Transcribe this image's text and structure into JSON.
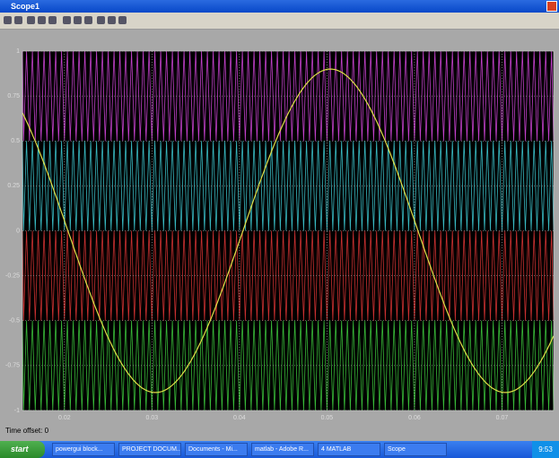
{
  "window": {
    "title": "Scope1"
  },
  "scope": {
    "xlim": [
      0.0152,
      0.0759
    ],
    "ylim": [
      -1,
      1
    ],
    "xticks": [
      0.02,
      0.03,
      0.04,
      0.05,
      0.06,
      0.07
    ],
    "yticks": [
      -1,
      -0.75,
      -0.5,
      -0.25,
      0,
      0.25,
      0.5,
      0.75,
      1
    ],
    "grid": true,
    "sine": {
      "color": "#e0e048",
      "amplitude": 0.9,
      "frequency": 25,
      "peak_time": 0.0504
    },
    "carriers": {
      "frequency": 1500,
      "bands": [
        {
          "color": "#c040c8",
          "ylim": [
            0.5,
            1
          ]
        },
        {
          "color": "#38b8c0",
          "ylim": [
            0,
            0.5
          ]
        },
        {
          "color": "#c83030",
          "ylim": [
            -0.5,
            0
          ]
        },
        {
          "color": "#38b838",
          "ylim": [
            -1,
            -0.5
          ]
        }
      ]
    }
  },
  "status": "Time offset:  0",
  "taskbar": {
    "start": "start",
    "items": [
      "powergui block...",
      "PROJECT DOCUM...",
      "Documents - Mi...",
      "matlab - Adobe R...",
      "4 MATLAB",
      "Scope"
    ],
    "clock": "9:53"
  }
}
